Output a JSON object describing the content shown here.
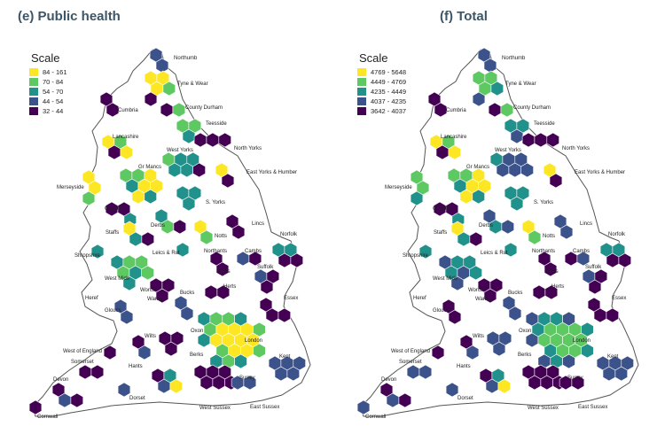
{
  "colors": {
    "yellow": "#fde725",
    "green": "#5ec962",
    "teal": "#21918c",
    "blue": "#3b528b",
    "purple": "#440154",
    "outline": "#555555"
  },
  "panels": [
    {
      "id": "e",
      "title": "(e) Public health",
      "legend": {
        "title": "Scale",
        "items": [
          {
            "label": "84 - 161",
            "color": "#fde725"
          },
          {
            "label": "70 - 84",
            "color": "#5ec962"
          },
          {
            "label": "54 - 70",
            "color": "#21918c"
          },
          {
            "label": "44 - 54",
            "color": "#3b528b"
          },
          {
            "label": "32 - 44",
            "color": "#440154"
          }
        ]
      }
    },
    {
      "id": "f",
      "title": "(f) Total",
      "legend": {
        "title": "Scale",
        "items": [
          {
            "label": "4769 - 5648",
            "color": "#fde725"
          },
          {
            "label": "4449 - 4769",
            "color": "#5ec962"
          },
          {
            "label": "4235 - 4449",
            "color": "#21918c"
          },
          {
            "label": "4037 - 4235",
            "color": "#3b528b"
          },
          {
            "label": "3642 - 4037",
            "color": "#440154"
          }
        ]
      }
    }
  ],
  "region_labels": [
    "Northumb",
    "Tyne & Wear",
    "Cumbria",
    "County Durham",
    "Teesside",
    "Lancashire",
    "North Yorks",
    "West Yorks",
    "Gr Mancs",
    "East Yorks & Humber",
    "Merseyside",
    "S. Yorks",
    "Cheshire",
    "Derbs",
    "Lincs",
    "Notts",
    "Staffs",
    "Norfolk",
    "Shropshire",
    "Leics & Rut",
    "Northants",
    "Cambs",
    "West Mids",
    "Beds",
    "Suffolk",
    "Heref",
    "Worcs",
    "Herts",
    "Warks",
    "Bucks",
    "Essex",
    "Gloucs",
    "Oxon",
    "London",
    "Wilts",
    "West of England",
    "Berks",
    "Somerset",
    "Hants",
    "Kent",
    "Devon",
    "Surrey",
    "Dorset",
    "West Sussex",
    "East Sussex",
    "Cornwall"
  ]
}
